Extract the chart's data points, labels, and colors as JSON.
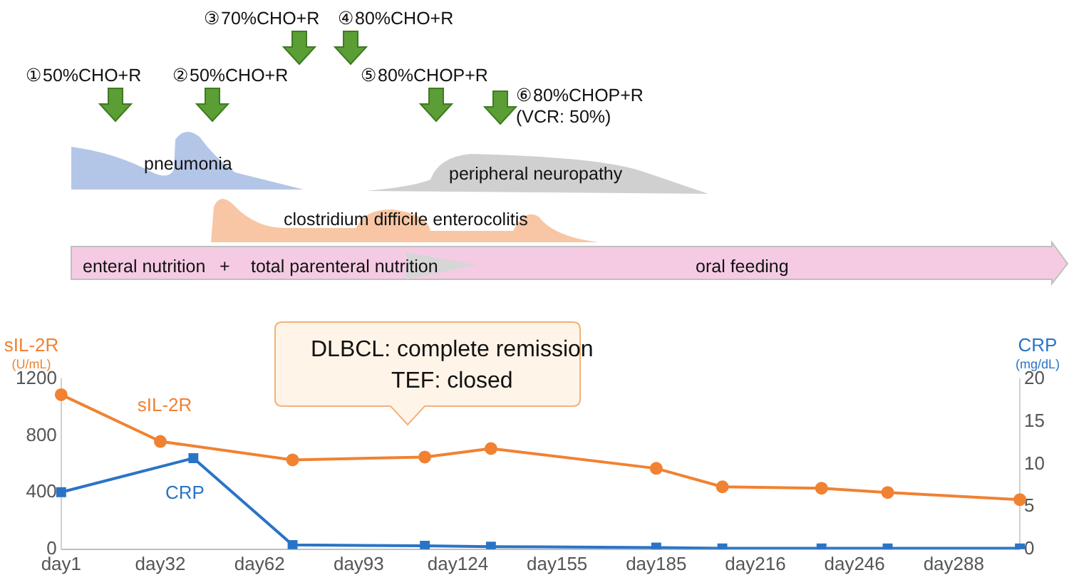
{
  "chart_data": {
    "type": "line",
    "ylabel": "sIL-2R\n(U/mL)",
    "y2label": "CRP\n(mg/dL)",
    "annotations": [
      "③70%CHO+R",
      "④80%CHO+R",
      "①50%CHO+R",
      "②50%CHO+R",
      "⑤80%CHOP+R",
      "⑥80%CHOP+R\n(VCR: 50%)",
      "pneumonia",
      "peripheral neuropathy",
      "clostridium difficile enterocolitis",
      "enteral nutrition",
      "+",
      "total parenteral nutrition",
      "oral feeding",
      "DLBCL: complete remission\nTEF: closed"
    ],
    "categories": [
      "day1",
      null,
      null,
      "day32",
      null,
      null,
      "day62",
      null,
      null,
      "day93",
      null,
      null,
      "day124",
      null,
      null,
      "day155",
      null,
      null,
      "day185",
      null,
      null,
      "day216",
      null,
      null,
      "day246",
      null,
      null,
      "day288",
      null,
      null
    ],
    "series": [
      {
        "name": "sIL-2R",
        "color": "#f08232",
        "marker": "circle",
        "values": [
          1090,
          null,
          null,
          760,
          null,
          null,
          null,
          630,
          null,
          null,
          null,
          650,
          null,
          710,
          null,
          null,
          null,
          null,
          570,
          null,
          440,
          null,
          null,
          430,
          null,
          400,
          null,
          null,
          null,
          350
        ]
      },
      {
        "name": "CRP",
        "color": "#2a74c6",
        "marker": "square",
        "axis": "y2",
        "values": [
          6.7,
          null,
          null,
          null,
          10.7,
          null,
          null,
          0.5,
          null,
          null,
          null,
          0.4,
          null,
          0.3,
          null,
          null,
          null,
          null,
          0.2,
          null,
          0.1,
          null,
          null,
          0.1,
          null,
          0.1,
          null,
          null,
          null,
          0.1
        ]
      }
    ],
    "ylim": [
      0,
      1200
    ],
    "yticks": [
      0,
      400,
      800,
      1200
    ],
    "y2lim": [
      0,
      20
    ],
    "y2ticks": [
      0,
      5,
      10,
      15,
      20
    ],
    "grid": false,
    "legend": false
  }
}
